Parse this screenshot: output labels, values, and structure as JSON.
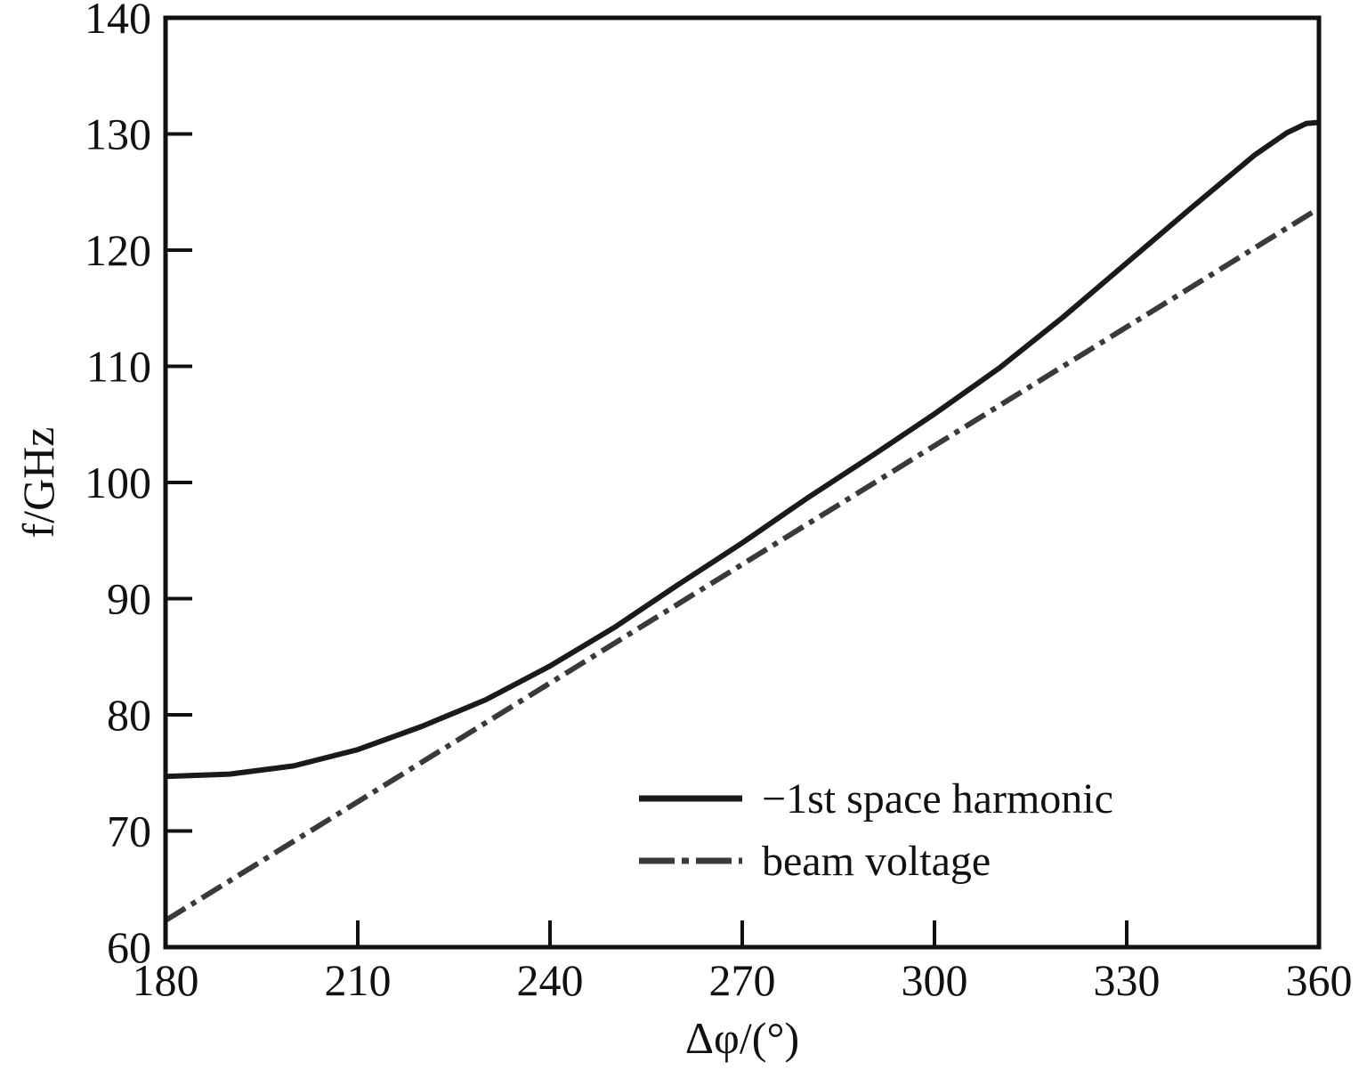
{
  "chart_data": {
    "type": "line",
    "title": "",
    "xlabel": "Δφ/(°)",
    "ylabel": "f/GHz",
    "xlim": [
      180,
      360
    ],
    "ylim": [
      60,
      140
    ],
    "xticks": [
      180,
      210,
      240,
      270,
      300,
      330,
      360
    ],
    "yticks": [
      60,
      70,
      80,
      90,
      100,
      110,
      120,
      130,
      140
    ],
    "grid": false,
    "legend_position": "bottom-right",
    "series": [
      {
        "name": "−1st space harmonic",
        "style": "solid",
        "color": "#1a1a1a",
        "x": [
          180,
          190,
          200,
          210,
          220,
          230,
          240,
          250,
          260,
          270,
          280,
          290,
          300,
          310,
          320,
          330,
          340,
          350,
          355,
          358,
          360
        ],
        "y": [
          74.7,
          74.9,
          75.6,
          77.0,
          79.0,
          81.3,
          84.2,
          87.5,
          91.2,
          94.8,
          98.6,
          102.2,
          105.9,
          109.8,
          114.2,
          118.9,
          123.6,
          128.2,
          130.1,
          130.9,
          131.0
        ]
      },
      {
        "name": "beam voltage",
        "style": "dashdot",
        "color": "#3a3a3a",
        "x": [
          180,
          360
        ],
        "y": [
          62.3,
          123.6
        ]
      }
    ]
  }
}
